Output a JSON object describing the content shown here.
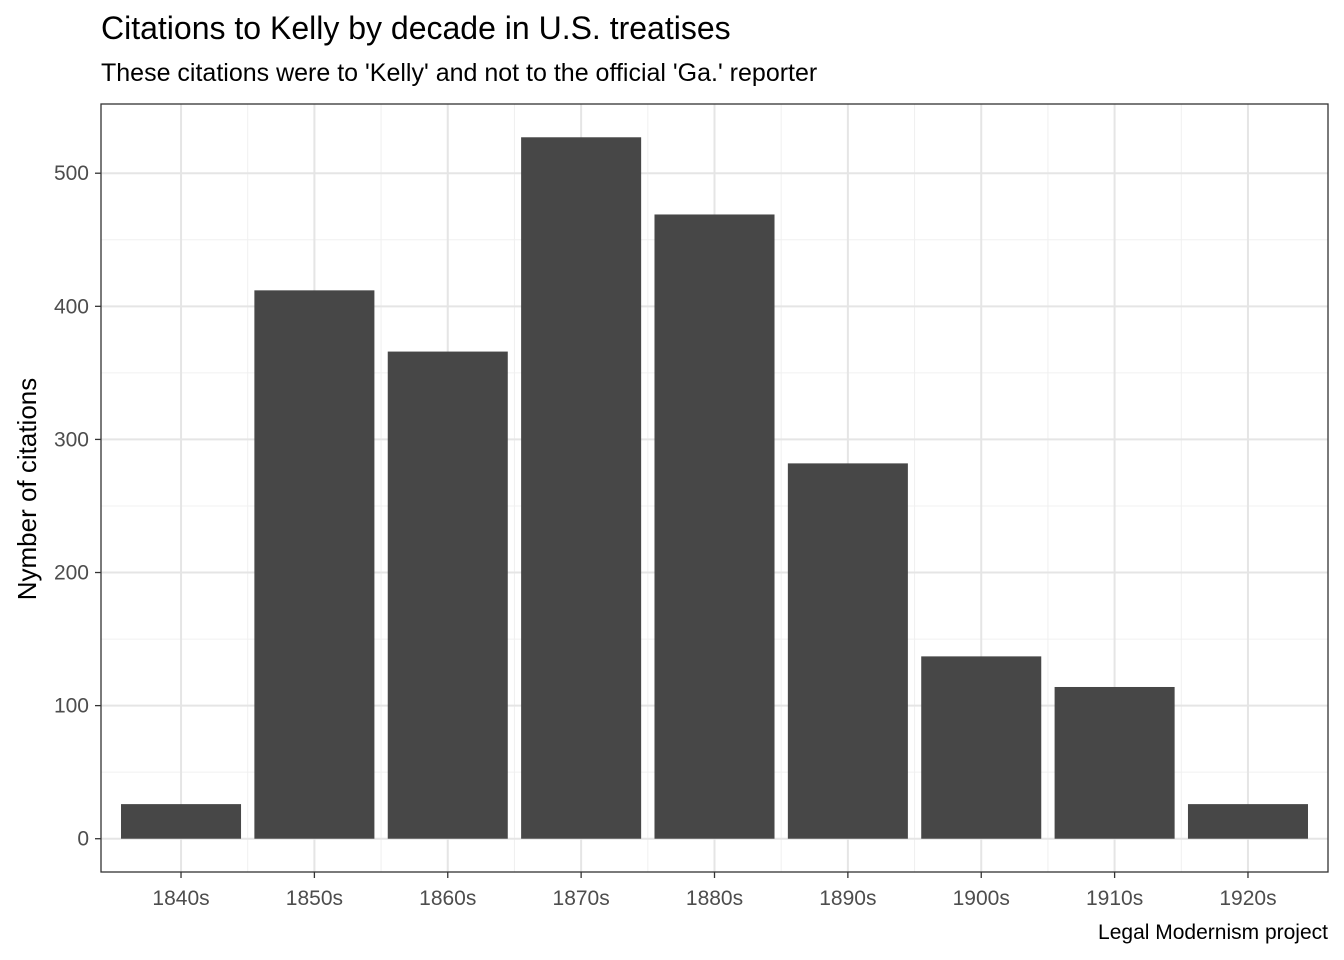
{
  "chart_data": {
    "type": "bar",
    "title": "Citations to Kelly by decade in U.S. treatises",
    "subtitle": "These citations were to 'Kelly' and not to the official 'Ga.' reporter",
    "caption": "Legal Modernism project",
    "xlabel": "",
    "ylabel": "Nymber of citations",
    "categories": [
      "1840s",
      "1850s",
      "1860s",
      "1870s",
      "1880s",
      "1890s",
      "1900s",
      "1910s",
      "1920s"
    ],
    "values": [
      26,
      412,
      366,
      527,
      469,
      282,
      137,
      114,
      26
    ],
    "ylim": [
      -25,
      552
    ],
    "yticks": [
      0,
      100,
      200,
      300,
      400,
      500
    ],
    "grid": true,
    "legend": "none",
    "colors": {
      "bar": "#474747",
      "panel_background": "#ffffff",
      "grid_major": "#e5e5e5",
      "grid_minor": "#f0f0f0",
      "panel_border": "#333333",
      "tick_text": "#4d4d4d"
    }
  }
}
